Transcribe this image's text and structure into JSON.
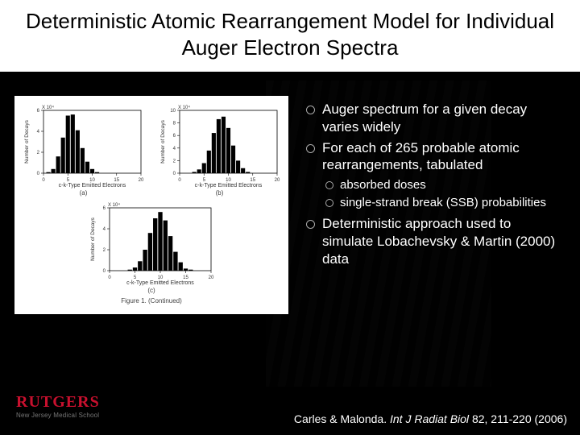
{
  "title": "Deterministic Atomic Rearrangement Model for Individual Auger Electron Spectra",
  "bullets": {
    "b1": "Auger spectrum for a given decay varies widely",
    "b2": "For each of 265 probable atomic rearrangements, tabulated",
    "sub1": "absorbed doses",
    "sub2": "single-strand break (SSB) probabilities",
    "b3": "Deterministic approach used to simulate Lobachevsky & Martin (2000) data"
  },
  "figure": {
    "panel_a": {
      "type": "histogram",
      "x_label": "c-k-Type Emitted Electrons",
      "y_label": "Number of Decays",
      "y_exp": "X 10⁴",
      "sub": "(a)",
      "x_ticks": [
        0,
        5,
        10,
        15,
        20
      ],
      "y_ticks": [
        0,
        2,
        4,
        6
      ],
      "bars_x": [
        1,
        2,
        3,
        4,
        5,
        6,
        7,
        8,
        9,
        10,
        11,
        12,
        13
      ],
      "bars_y": [
        0.1,
        0.4,
        1.6,
        3.4,
        5.5,
        5.6,
        4.1,
        2.4,
        1.1,
        0.4,
        0.1,
        0.0,
        0.0
      ],
      "bar_color": "#000000",
      "background": "#ffffff"
    },
    "panel_b": {
      "type": "histogram",
      "x_label": "c-k-Type Emitted Electrons",
      "y_label": "Number of Decays",
      "y_exp": "X 10⁴",
      "sub": "(b)",
      "x_ticks": [
        0,
        5,
        10,
        15,
        20
      ],
      "y_ticks": [
        0,
        2,
        4,
        6,
        8,
        10
      ],
      "bars_x": [
        3,
        4,
        5,
        6,
        7,
        8,
        9,
        10,
        11,
        12,
        13,
        14,
        15
      ],
      "bars_y": [
        0.2,
        0.6,
        1.6,
        3.6,
        6.4,
        8.6,
        9.0,
        7.2,
        4.4,
        2.0,
        0.8,
        0.2,
        0.0
      ],
      "bar_color": "#000000",
      "background": "#ffffff"
    },
    "panel_c": {
      "type": "histogram",
      "x_label": "c-k-Type Emitted Electrons",
      "y_label": "Number of Decays",
      "y_exp": "X 10⁴",
      "sub": "(c)",
      "x_ticks": [
        0,
        5,
        10,
        15,
        20
      ],
      "y_ticks": [
        0,
        2,
        4,
        6
      ],
      "bars_x": [
        4,
        5,
        6,
        7,
        8,
        9,
        10,
        11,
        12,
        13,
        14,
        15,
        16,
        17
      ],
      "bars_y": [
        0.1,
        0.3,
        0.9,
        2.0,
        3.6,
        5.0,
        5.6,
        4.8,
        3.3,
        1.8,
        0.8,
        0.2,
        0.1,
        0.0
      ],
      "bar_color": "#000000",
      "background": "#ffffff"
    },
    "caption": "Figure 1. (Continued)"
  },
  "citation": {
    "authors": "Carles & Malonda.",
    "journal": "Int J Radiat Biol",
    "rest": "82, 211-220 (2006)"
  },
  "logo": {
    "name": "RUTGERS",
    "subtitle": "New Jersey Medical School"
  },
  "colors": {
    "slide_bg": "#000000",
    "title_bg": "#ffffff",
    "title_fg": "#000000",
    "text_fg": "#ffffff",
    "logo_red": "#c8102e"
  },
  "typography": {
    "title_fontsize_pt": 20,
    "bullet_fontsize_pt": 13,
    "subbullet_fontsize_pt": 11,
    "citation_fontsize_pt": 11
  }
}
